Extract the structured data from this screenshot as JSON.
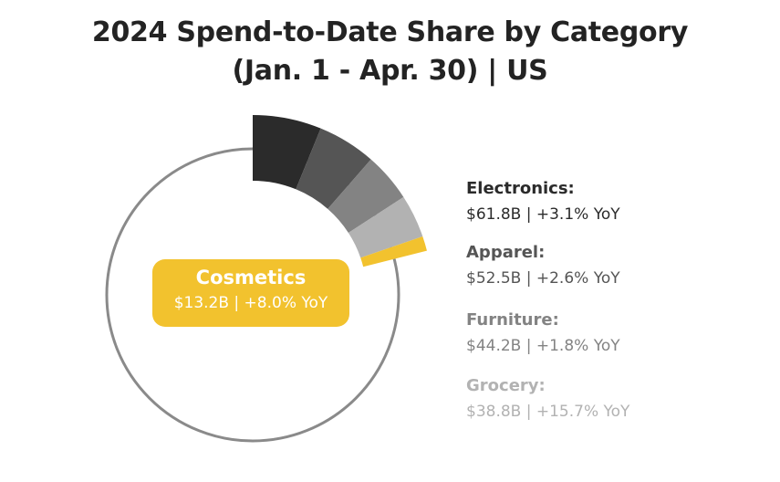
{
  "chart_data": {
    "type": "pie",
    "style": "donut",
    "title": "2024 Spend-to-Date Share by Category",
    "subtitle": "(Jan. 1 - Apr. 30)  |  US",
    "unit": "USD billions",
    "categories": [
      "Electronics",
      "Apparel",
      "Furniture",
      "Grocery",
      "Cosmetics"
    ],
    "values": [
      61.8,
      52.5,
      44.2,
      38.8,
      13.2
    ],
    "yoy_change_pct": [
      3.1,
      2.6,
      1.8,
      15.7,
      8.0
    ],
    "colors": [
      "#2b2b2b",
      "#555555",
      "#838383",
      "#b2b2b2",
      "#f2c22e"
    ],
    "remainder_color": "#8a8a8a",
    "legend": [
      {
        "name": "Electronics:",
        "stat": "$61.8B  |  +3.1% YoY",
        "color": "#2b2b2b"
      },
      {
        "name": "Apparel:",
        "stat": "$52.5B  |  +2.6% YoY",
        "color": "#555555"
      },
      {
        "name": "Furniture:",
        "stat": "$44.2B  |  +1.8% YoY",
        "color": "#838383"
      },
      {
        "name": "Grocery:",
        "stat": "$38.8B  |  +15.7% YoY",
        "color": "#b2b2b2"
      }
    ],
    "callout": {
      "name": "Cosmetics",
      "stat": "$13.2B  |  +8.0% YoY",
      "color": "#f2c22e"
    }
  }
}
